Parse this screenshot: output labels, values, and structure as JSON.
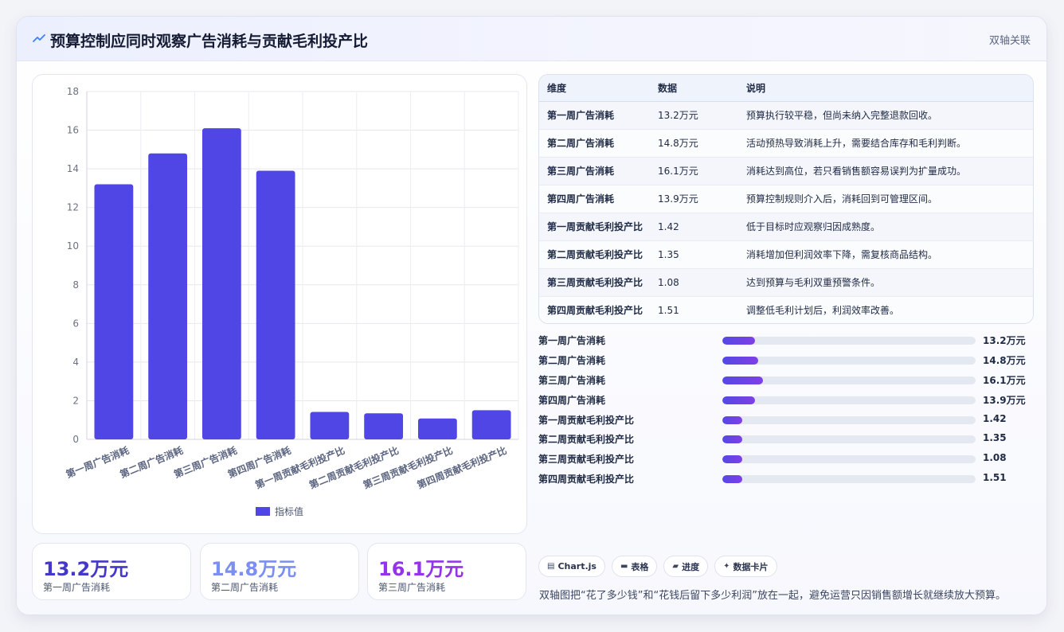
{
  "header": {
    "title": "预算控制应同时观察广告消耗与贡献毛利投产比",
    "tag": "双轴关联"
  },
  "chart_data": {
    "type": "bar",
    "categories": [
      "第一周广告消耗",
      "第二周广告消耗",
      "第三周广告消耗",
      "第四周广告消耗",
      "第一周贡献毛利投产比",
      "第二周贡献毛利投产比",
      "第三周贡献毛利投产比",
      "第四周贡献毛利投产比"
    ],
    "series": [
      {
        "name": "指标值",
        "values": [
          13.2,
          14.8,
          16.1,
          13.9,
          1.42,
          1.35,
          1.08,
          1.51
        ]
      }
    ],
    "yticks": [
      "0",
      "2",
      "4",
      "6",
      "8",
      "10",
      "12",
      "14",
      "16",
      "18"
    ],
    "ylim": [
      0,
      18
    ],
    "grid": true,
    "legend_position": "bottom",
    "bar_color": "#4f46e5"
  },
  "kpis": [
    {
      "value": "13.2万元",
      "label": "第一周广告消耗",
      "color": "#4338ca"
    },
    {
      "value": "14.8万元",
      "label": "第二周广告消耗",
      "color": "#7b8ff0"
    },
    {
      "value": "16.1万元",
      "label": "第三周广告消耗",
      "color": "#9333ea"
    }
  ],
  "table": {
    "headers": [
      "维度",
      "数据",
      "说明"
    ],
    "rows": [
      [
        "第一周广告消耗",
        "13.2万元",
        "预算执行较平稳，但尚未纳入完整退款回收。"
      ],
      [
        "第二周广告消耗",
        "14.8万元",
        "活动预热导致消耗上升，需要结合库存和毛利判断。"
      ],
      [
        "第三周广告消耗",
        "16.1万元",
        "消耗达到高位，若只看销售额容易误判为扩量成功。"
      ],
      [
        "第四周广告消耗",
        "13.9万元",
        "预算控制规则介入后，消耗回到可管理区间。"
      ],
      [
        "第一周贡献毛利投产比",
        "1.42",
        "低于目标时应观察归因成熟度。"
      ],
      [
        "第二周贡献毛利投产比",
        "1.35",
        "消耗增加但利润效率下降，需复核商品结构。"
      ],
      [
        "第三周贡献毛利投产比",
        "1.08",
        "达到预算与毛利双重预警条件。"
      ],
      [
        "第四周贡献毛利投产比",
        "1.51",
        "调整低毛利计划后，利润效率改善。"
      ]
    ]
  },
  "progress": [
    {
      "label": "第一周广告消耗",
      "value": "13.2万元",
      "fraction": 0.13
    },
    {
      "label": "第二周广告消耗",
      "value": "14.8万元",
      "fraction": 0.14
    },
    {
      "label": "第三周广告消耗",
      "value": "16.1万元",
      "fraction": 0.16
    },
    {
      "label": "第四周广告消耗",
      "value": "13.9万元",
      "fraction": 0.13
    },
    {
      "label": "第一周贡献毛利投产比",
      "value": "1.42",
      "fraction": 0.08
    },
    {
      "label": "第二周贡献毛利投产比",
      "value": "1.35",
      "fraction": 0.08
    },
    {
      "label": "第三周贡献毛利投产比",
      "value": "1.08",
      "fraction": 0.08
    },
    {
      "label": "第四周贡献毛利投产比",
      "value": "1.51",
      "fraction": 0.08
    }
  ],
  "chips": [
    {
      "icon": "chart-icon",
      "glyph": "▤",
      "label": "Chart.js"
    },
    {
      "icon": "table-icon",
      "glyph": "▬",
      "label": "表格"
    },
    {
      "icon": "progress-icon",
      "glyph": "▰",
      "label": "进度"
    },
    {
      "icon": "card-icon",
      "glyph": "✦",
      "label": "数据卡片"
    }
  ],
  "note": "双轴图把“花了多少钱”和“花钱后留下多少利润”放在一起，避免运营只因销售额增长就继续放大预算。"
}
